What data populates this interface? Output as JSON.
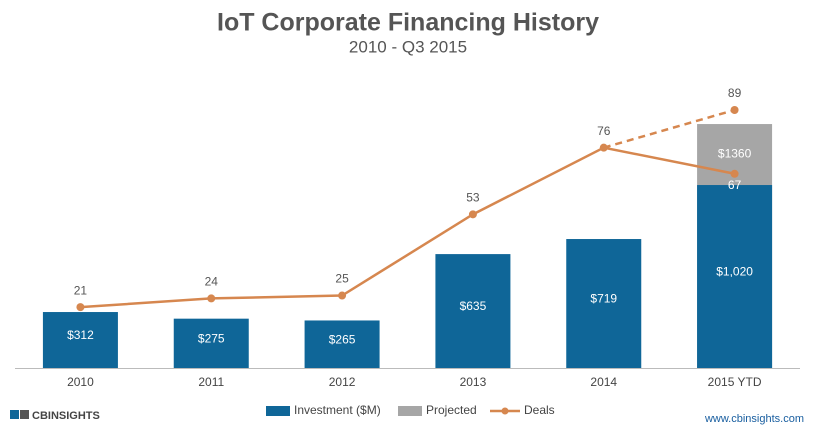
{
  "chart_data": {
    "type": "bar",
    "title": "IoT Corporate Financing History",
    "subtitle": "2010 - Q3 2015",
    "categories": [
      "2010",
      "2011",
      "2012",
      "2013",
      "2014",
      "2015 YTD"
    ],
    "ylim": [
      0,
      1600
    ],
    "y2lim": [
      0,
      99
    ],
    "series": [
      {
        "name": "Investment ($M)",
        "color": "#0f6698",
        "values": [
          312,
          275,
          265,
          635,
          719,
          1020
        ],
        "value_labels": [
          "$312",
          "$275",
          "$265",
          "$635",
          "$719",
          "$1,020"
        ]
      },
      {
        "name": "Projected",
        "color": "#a6a6a6",
        "values": [
          null,
          null,
          null,
          null,
          null,
          1360
        ],
        "value_labels": [
          null,
          null,
          null,
          null,
          null,
          "$1360"
        ]
      },
      {
        "name": "Deals",
        "color": "#d6874f",
        "axis": "y2",
        "type": "line",
        "values": [
          21,
          24,
          25,
          53,
          76,
          67
        ],
        "projected_values": [
          null,
          null,
          null,
          null,
          null,
          89
        ]
      }
    ],
    "footer": {
      "logo": "CBINSIGHTS",
      "source": "www.cbinsights.com"
    }
  }
}
